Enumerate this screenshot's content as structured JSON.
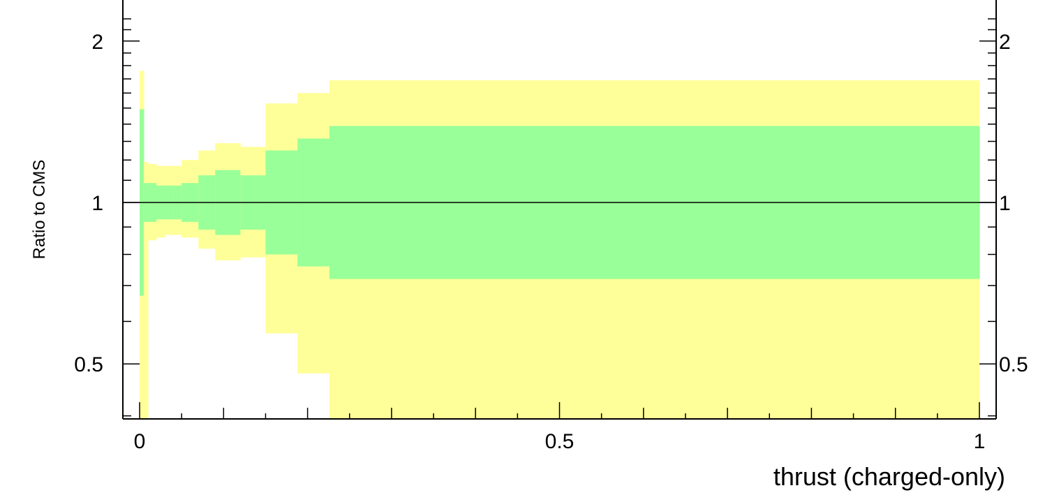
{
  "chart_data": {
    "type": "area",
    "title": "",
    "xlabel": "thrust (charged-only)",
    "ylabel": "Ratio to CMS",
    "xlim": [
      -0.02,
      1.02
    ],
    "ylim": [
      0.35,
      2.35
    ],
    "yscale": "log",
    "reference_line": 1,
    "x_ticks": [
      {
        "value": 0,
        "label": "0"
      },
      {
        "value": 0.5,
        "label": "0.5"
      },
      {
        "value": 1,
        "label": "1"
      }
    ],
    "y_ticks": [
      {
        "value": 0.5,
        "label": "0.5"
      },
      {
        "value": 1,
        "label": "1"
      },
      {
        "value": 2,
        "label": "2"
      }
    ],
    "bins": [
      0,
      0.005,
      0.01,
      0.02,
      0.03,
      0.04,
      0.05,
      0.07,
      0.09,
      0.12,
      0.15,
      0.188,
      0.226,
      1.0
    ],
    "series": [
      {
        "color": "#ffff99",
        "lower": [
          0.35,
          0.35,
          0.85,
          0.86,
          0.87,
          0.87,
          0.86,
          0.82,
          0.78,
          0.79,
          0.57,
          0.48,
          0.35
        ],
        "upper": [
          1.76,
          1.19,
          1.18,
          1.17,
          1.17,
          1.17,
          1.2,
          1.25,
          1.29,
          1.27,
          1.53,
          1.6,
          1.69
        ]
      },
      {
        "color": "#99ff99",
        "lower": [
          0.67,
          0.92,
          0.92,
          0.93,
          0.93,
          0.93,
          0.92,
          0.89,
          0.87,
          0.89,
          0.8,
          0.76,
          0.72
        ]
      }
    ]
  }
}
